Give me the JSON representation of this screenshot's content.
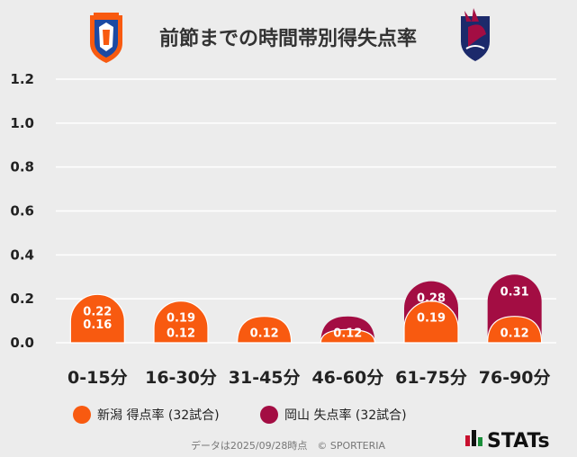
{
  "colors": {
    "home": "#f85a10",
    "away": "#a30d43",
    "grid": "#ffffff",
    "background": "#ececec"
  },
  "header": {
    "title": "前節までの時間帯別得失点率",
    "home_logo": "albirex-niigata-emblem-icon",
    "away_logo": "fagiano-okayama-emblem-icon"
  },
  "legend": {
    "home_label": "新潟 得点率 (32試合)",
    "away_label": "岡山 失点率 (32試合)"
  },
  "footer": {
    "note": "データは2025/09/28時点　© SPORTERIA",
    "brand": "STATs"
  },
  "chart_data": {
    "type": "bar",
    "title": "前節までの時間帯別得失点率",
    "categories": [
      "0-15分",
      "16-30分",
      "31-45分",
      "46-60分",
      "61-75分",
      "76-90分"
    ],
    "series": [
      {
        "name": "新潟 得点率 (32試合)",
        "values": [
          0.22,
          0.19,
          0.12,
          0.06,
          0.19,
          0.12
        ],
        "labels": [
          "0.22",
          "0.19",
          "0.12",
          "",
          "0.19",
          "0.12"
        ]
      },
      {
        "name": "岡山 失点率 (32試合)",
        "values": [
          0.16,
          0.12,
          0.06,
          0.12,
          0.28,
          0.31
        ],
        "labels": [
          "0.16",
          "0.12",
          "",
          "0.12",
          "0.28",
          "0.31"
        ]
      }
    ],
    "layout": "overlapping-bars",
    "yticks": [
      "0.0",
      "0.2",
      "0.4",
      "0.6",
      "0.8",
      "1.0",
      "1.2"
    ],
    "ylim": [
      0,
      1.2
    ],
    "xlabel": "",
    "ylabel": "",
    "grid": true,
    "legend_position": "bottom"
  }
}
